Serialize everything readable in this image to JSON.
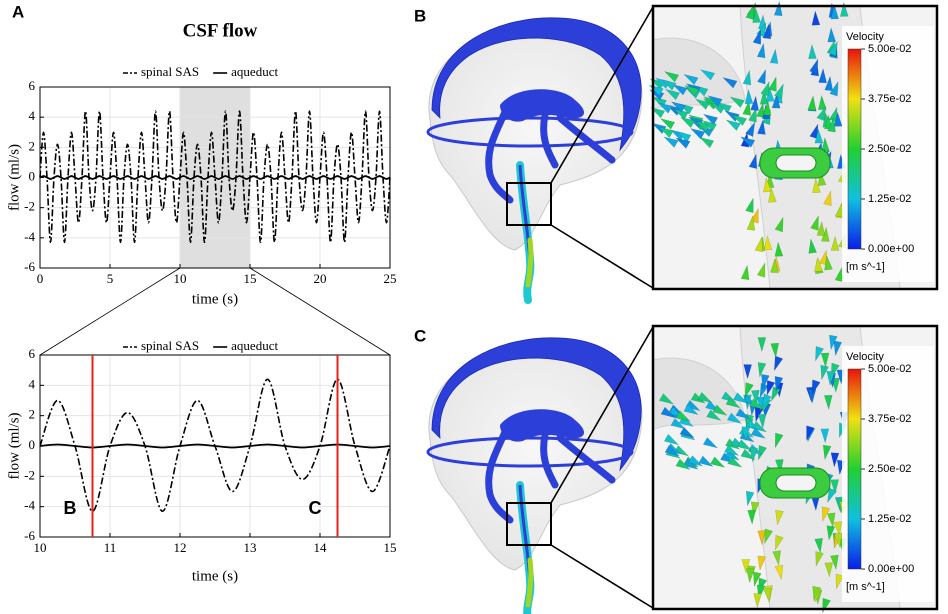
{
  "chart_data": [
    {
      "type": "line",
      "panel": "A",
      "title": "CSF flow",
      "xlabel": "time (s)",
      "ylabel": "flow (ml/s)",
      "x": [
        0,
        0.25,
        0.5,
        0.75,
        1,
        1.25,
        1.5,
        1.75,
        2,
        2.25,
        2.5,
        2.75,
        3,
        3.25,
        3.5,
        3.75,
        4,
        4.25,
        4.5,
        4.75,
        5,
        5.25,
        5.5,
        5.75,
        6,
        6.25,
        6.5,
        6.75,
        7,
        7.25,
        7.5,
        7.75,
        8,
        8.25,
        8.5,
        8.75,
        9,
        9.25,
        9.5,
        9.75,
        10,
        10.25,
        10.5,
        10.75,
        11,
        11.25,
        11.5,
        11.75,
        12,
        12.25,
        12.5,
        12.75,
        13,
        13.25,
        13.5,
        13.75,
        14,
        14.25,
        14.5,
        14.75,
        15,
        15.25,
        15.5,
        15.75,
        16,
        16.25,
        16.5,
        16.75,
        17,
        17.25,
        17.5,
        17.75,
        18,
        18.25,
        18.5,
        18.75,
        19,
        19.25,
        19.5,
        19.75,
        20,
        20.25,
        20.5,
        20.75,
        21,
        21.25,
        21.5,
        21.75,
        22,
        22.25,
        22.5,
        22.75,
        23,
        23.25,
        23.5,
        23.75,
        24,
        24.25,
        24.5,
        24.75,
        25
      ],
      "series": [
        {
          "name": "spinal SAS",
          "color": "#000000",
          "dash": true,
          "values": [
            0,
            3,
            0,
            -4.3,
            0,
            2.2,
            0,
            -4.3,
            0,
            3,
            0,
            -3,
            0,
            4.4,
            0,
            -2.2,
            0,
            4.4,
            0,
            -3,
            0,
            3,
            0,
            -4.3,
            0,
            2.2,
            0,
            -4.3,
            0,
            3,
            0,
            -3,
            0,
            4.4,
            0,
            -2.2,
            0,
            4.4,
            0,
            -3,
            0,
            3,
            0,
            -4.3,
            0,
            2.2,
            0,
            -4.3,
            0,
            3,
            0,
            -3,
            0,
            4.4,
            0,
            -2.2,
            0,
            4.4,
            0,
            -3,
            0,
            3,
            0,
            -4.3,
            0,
            2.2,
            0,
            -4.3,
            0,
            3,
            0,
            -3,
            0,
            4.4,
            0,
            -2.2,
            0,
            4.4,
            0,
            -3,
            0,
            3,
            0,
            -4.3,
            0,
            2.2,
            0,
            -4.3,
            0,
            3,
            0,
            -3,
            0,
            4.4,
            0,
            -2.2,
            0,
            4.4,
            0,
            -3,
            0
          ]
        },
        {
          "name": "aqueduct",
          "color": "#000000",
          "dash": false,
          "values": [
            0,
            0.1,
            0,
            -0.1,
            0,
            0.1,
            0,
            -0.1,
            0,
            0.1,
            0,
            -0.1,
            0,
            0.1,
            0,
            -0.1,
            0,
            0.1,
            0,
            -0.1,
            0,
            0.1,
            0,
            -0.1,
            0,
            0.1,
            0,
            -0.1,
            0,
            0.1,
            0,
            -0.1,
            0,
            0.1,
            0,
            -0.1,
            0,
            0.1,
            0,
            -0.1,
            0,
            0.1,
            0,
            -0.1,
            0,
            0.1,
            0,
            -0.1,
            0,
            0.1,
            0,
            -0.1,
            0,
            0.1,
            0,
            -0.1,
            0,
            0.1,
            0,
            -0.1,
            0,
            0.1,
            0,
            -0.1,
            0,
            0.1,
            0,
            -0.1,
            0,
            0.1,
            0,
            -0.1,
            0,
            0.1,
            0,
            -0.1,
            0,
            0.1,
            0,
            -0.1,
            0,
            0.1,
            0,
            -0.1,
            0,
            0.1,
            0,
            -0.1,
            0,
            0.1,
            0,
            -0.1,
            0,
            0.1,
            0,
            -0.1,
            0,
            0.1,
            0,
            -0.1,
            0
          ]
        }
      ],
      "xlim": [
        0,
        25
      ],
      "xticks": [
        0,
        5,
        10,
        15,
        20,
        25
      ],
      "ylim": [
        -6,
        6
      ],
      "yticks": [
        -6,
        -4,
        -2,
        0,
        2,
        4,
        6
      ],
      "grid": true,
      "legend": "top",
      "highlight_x": [
        10,
        15
      ]
    },
    {
      "type": "line",
      "xlabel": "time (s)",
      "ylabel": "flow (ml/s)",
      "x": [
        10,
        10.25,
        10.5,
        10.75,
        11,
        11.25,
        11.5,
        11.75,
        12,
        12.25,
        12.5,
        12.75,
        13,
        13.25,
        13.5,
        13.75,
        14,
        14.25,
        14.5,
        14.75,
        15
      ],
      "series": [
        {
          "name": "spinal SAS",
          "color": "#000000",
          "dash": true,
          "values": [
            0,
            3,
            0,
            -4.3,
            0,
            2.2,
            0,
            -4.3,
            0,
            3,
            0,
            -3,
            0,
            4.4,
            0,
            -2.2,
            0,
            4.4,
            0,
            -3,
            0
          ]
        },
        {
          "name": "aqueduct",
          "color": "#000000",
          "dash": false,
          "values": [
            0,
            0.1,
            0,
            -0.1,
            0,
            0.1,
            0,
            -0.1,
            0,
            0.1,
            0,
            -0.1,
            0,
            0.1,
            0,
            -0.1,
            0,
            0.1,
            0,
            -0.1,
            0
          ]
        }
      ],
      "xlim": [
        10,
        15
      ],
      "xticks": [
        10,
        11,
        12,
        13,
        14,
        15
      ],
      "ylim": [
        -6,
        6
      ],
      "yticks": [
        -6,
        -4,
        -2,
        0,
        2,
        4,
        6
      ],
      "grid": true,
      "legend": "top",
      "vlines": [
        {
          "x": 10.75,
          "label": "B",
          "color": "#e8221b"
        },
        {
          "x": 14.25,
          "label": "C",
          "color": "#e8221b"
        }
      ]
    }
  ],
  "panels": [
    {
      "label": "B",
      "colorbar": {
        "title": "Velocity",
        "ticks": [
          "5.00e-02",
          "3.75e-02",
          "2.50e-02",
          "1.25e-02",
          "0.00e+00"
        ],
        "unit": "[m s^-1]"
      }
    },
    {
      "label": "C",
      "colorbar": {
        "title": "Velocity",
        "ticks": [
          "5.00e-02",
          "3.75e-02",
          "2.50e-02",
          "1.25e-02",
          "0.00e+00"
        ],
        "unit": "[m s^-1]"
      }
    }
  ]
}
